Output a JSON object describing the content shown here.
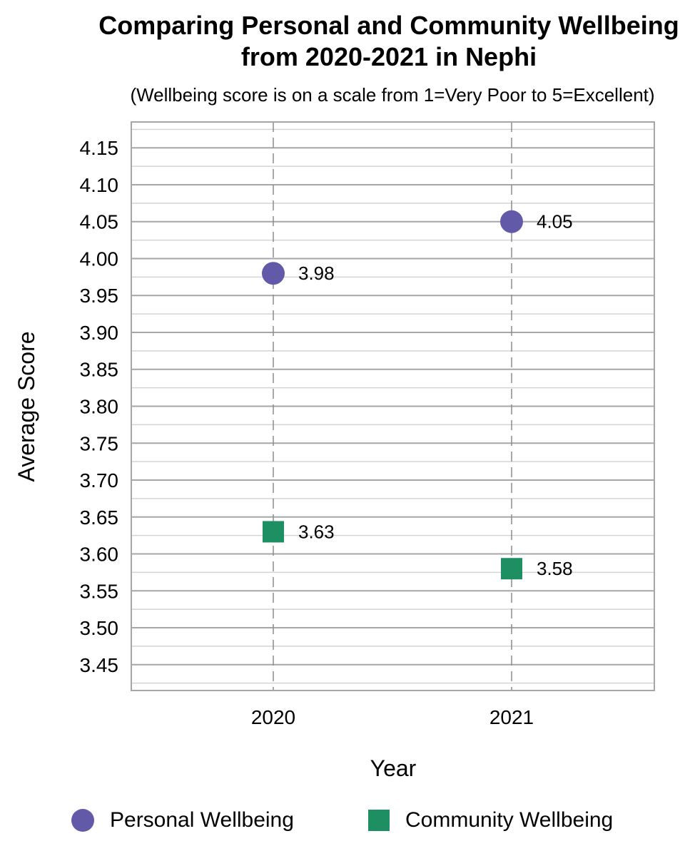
{
  "chart_data": {
    "type": "scatter",
    "title_lines": [
      "Comparing Personal and Community Wellbeing",
      "from 2020-2021 in Nephi"
    ],
    "subtitle": "(Wellbeing score is on a scale from 1=Very Poor to 5=Excellent)",
    "xlabel": "Year",
    "ylabel": "Average Score",
    "categories": [
      "2020",
      "2021"
    ],
    "ylim": [
      3.415,
      4.185
    ],
    "yticks": [
      "3.45",
      "3.50",
      "3.55",
      "3.60",
      "3.65",
      "3.70",
      "3.75",
      "3.80",
      "3.85",
      "3.90",
      "3.95",
      "4.00",
      "4.05",
      "4.10",
      "4.15"
    ],
    "grid": true,
    "legend_position": "bottom",
    "series": [
      {
        "name": "Personal Wellbeing",
        "marker": "circle",
        "color": "#6259a8",
        "values": [
          3.98,
          4.05
        ],
        "labels": [
          "3.98",
          "4.05"
        ]
      },
      {
        "name": "Community Wellbeing",
        "marker": "square",
        "color": "#1e8f63",
        "values": [
          3.63,
          3.58
        ],
        "labels": [
          "3.63",
          "3.58"
        ]
      }
    ]
  }
}
